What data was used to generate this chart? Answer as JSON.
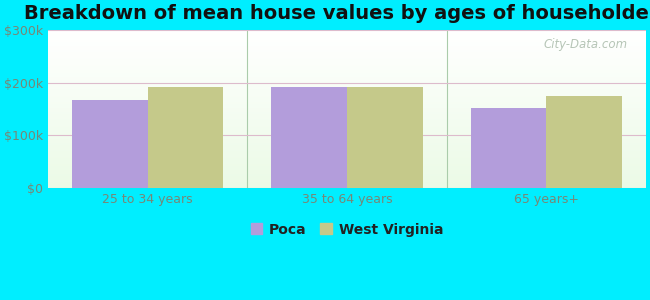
{
  "title": "Breakdown of mean house values by ages of householders",
  "categories": [
    "25 to 34 years",
    "35 to 64 years",
    "65 years+"
  ],
  "poca_values": [
    168000,
    193000,
    152000
  ],
  "wv_values": [
    193000,
    193000,
    175000
  ],
  "poca_color": "#b39ddb",
  "wv_color": "#c5c98a",
  "background_outer": "#00eeff",
  "ylim": [
    0,
    300000
  ],
  "yticks": [
    0,
    100000,
    200000,
    300000
  ],
  "ytick_labels": [
    "$0",
    "$100k",
    "$200k",
    "$300k"
  ],
  "bar_width": 0.38,
  "legend_labels": [
    "Poca",
    "West Virginia"
  ],
  "title_fontsize": 14,
  "tick_fontsize": 9,
  "legend_fontsize": 10,
  "watermark": "City-Data.com",
  "separator_color": "#aaccaa",
  "grid_color": "#ddbbcc",
  "ytick_color": "#778877",
  "xtick_color": "#778877"
}
